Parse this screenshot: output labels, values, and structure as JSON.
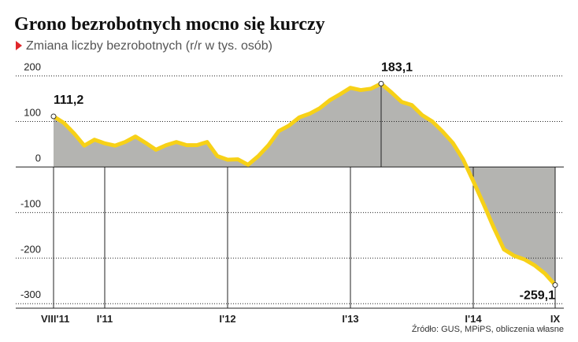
{
  "chart_data": {
    "type": "line",
    "title": "Grono bezrobotnych mocno się kurczy",
    "subtitle": "Zmiana liczby bezrobotnych  (r/r w tys. osób)",
    "source": "Źródło: GUS, MPiPS, obliczenia własne",
    "categories": [
      "VIII'11",
      null,
      null,
      null,
      null,
      "I'11",
      null,
      null,
      null,
      null,
      null,
      null,
      null,
      null,
      null,
      null,
      null,
      "I'12",
      null,
      null,
      null,
      null,
      null,
      null,
      null,
      null,
      null,
      null,
      null,
      "I'13",
      null,
      null,
      null,
      null,
      null,
      null,
      null,
      null,
      null,
      null,
      null,
      "I'14",
      null,
      null,
      null,
      null,
      null,
      null,
      null,
      "IX"
    ],
    "values": [
      111.2,
      97,
      74,
      47,
      60,
      52,
      47,
      55,
      67,
      53,
      38,
      48,
      55,
      48,
      48,
      55,
      24,
      16,
      17,
      5,
      24,
      48,
      79,
      91,
      109,
      117,
      129,
      147,
      160,
      174,
      169,
      172,
      183.1,
      164,
      143,
      136,
      114,
      100,
      78,
      53,
      17,
      -31,
      -81,
      -133,
      -181,
      -195,
      -203,
      -216,
      -234,
      -259.1
    ],
    "value_labels": [
      "111,2",
      null,
      null,
      null,
      null,
      null,
      null,
      null,
      null,
      null,
      null,
      null,
      null,
      null,
      null,
      null,
      null,
      null,
      null,
      null,
      null,
      null,
      null,
      null,
      null,
      null,
      null,
      null,
      null,
      null,
      null,
      null,
      "183,1",
      null,
      null,
      null,
      null,
      null,
      null,
      null,
      null,
      null,
      null,
      null,
      null,
      null,
      null,
      null,
      null,
      "-259,1"
    ],
    "color": "#f7d117",
    "area_color": "#b4b4b1",
    "ylim": [
      -310,
      220
    ],
    "yticks": [
      -300,
      -200,
      -100,
      0,
      100,
      200
    ],
    "grid": true
  }
}
